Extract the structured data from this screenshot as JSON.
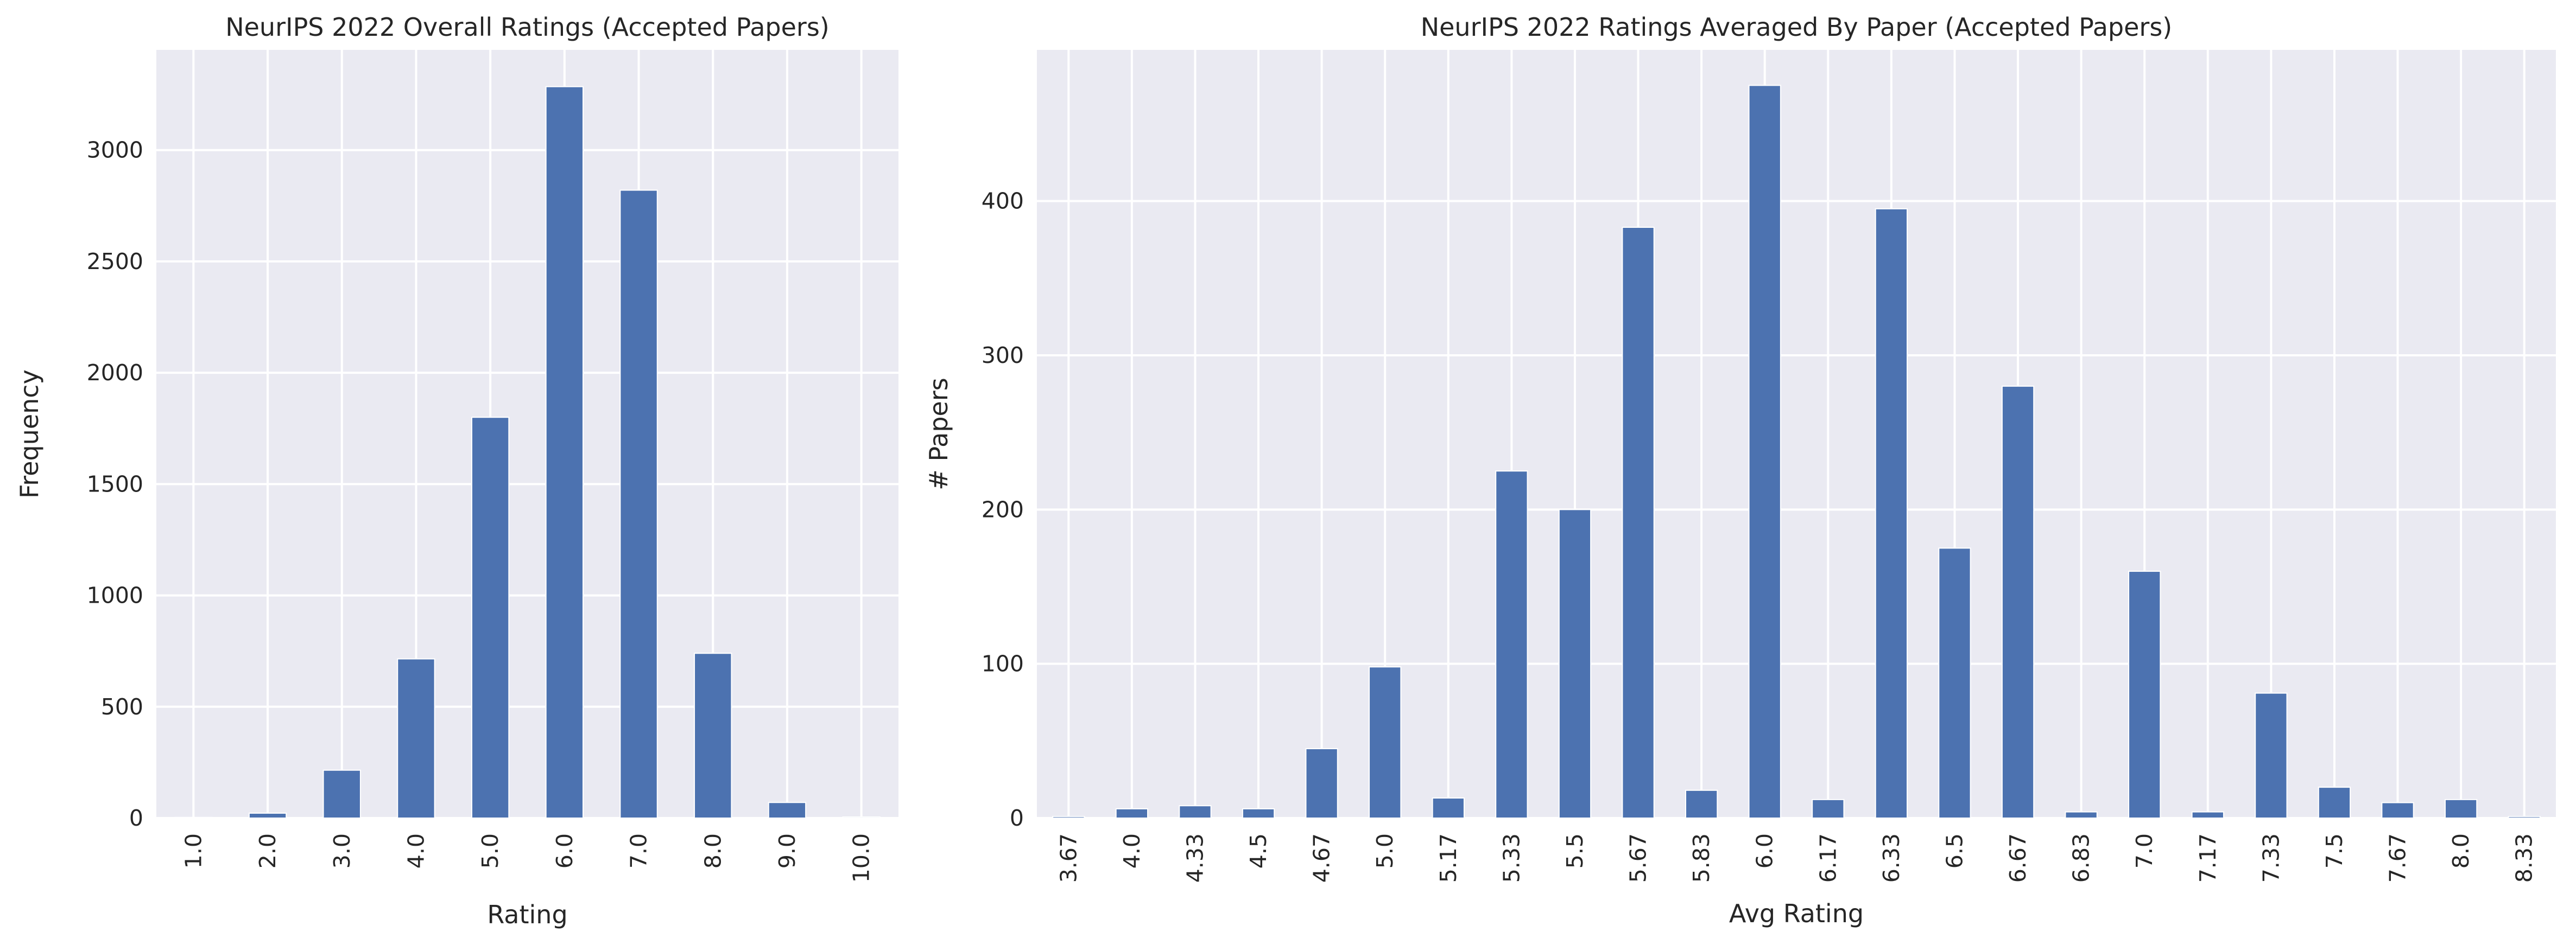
{
  "colors": {
    "bar": "#4c72b0",
    "plot_background": "#eaeaf2",
    "grid": "#ffffff"
  },
  "chart_data": [
    {
      "type": "bar",
      "title": "NeurIPS 2022 Overall Ratings (Accepted Papers)",
      "xlabel": "Rating",
      "ylabel": "Frequency",
      "categories": [
        "1.0",
        "2.0",
        "3.0",
        "4.0",
        "5.0",
        "6.0",
        "7.0",
        "8.0",
        "9.0",
        "10.0"
      ],
      "values": [
        3,
        22,
        215,
        715,
        1800,
        3285,
        2820,
        740,
        70,
        5
      ],
      "ylim": [
        0,
        3450
      ],
      "yticks": [
        0,
        500,
        1000,
        1500,
        2000,
        2500,
        3000
      ],
      "grid": true,
      "legend": "none"
    },
    {
      "type": "bar",
      "title": "NeurIPS 2022 Ratings Averaged By Paper (Accepted Papers)",
      "xlabel": "Avg Rating",
      "ylabel": "# Papers",
      "categories": [
        "3.67",
        "4.0",
        "4.33",
        "4.5",
        "4.67",
        "5.0",
        "5.17",
        "5.33",
        "5.5",
        "5.67",
        "5.83",
        "6.0",
        "6.17",
        "6.33",
        "6.5",
        "6.67",
        "6.83",
        "7.0",
        "7.17",
        "7.33",
        "7.5",
        "7.67",
        "8.0",
        "8.33"
      ],
      "values": [
        1,
        6,
        8,
        6,
        45,
        98,
        13,
        225,
        200,
        383,
        18,
        475,
        12,
        395,
        175,
        280,
        4,
        160,
        4,
        81,
        20,
        10,
        12,
        1
      ],
      "ylim": [
        0,
        498
      ],
      "yticks": [
        0,
        100,
        200,
        300,
        400
      ],
      "grid": true,
      "legend": "none"
    }
  ]
}
